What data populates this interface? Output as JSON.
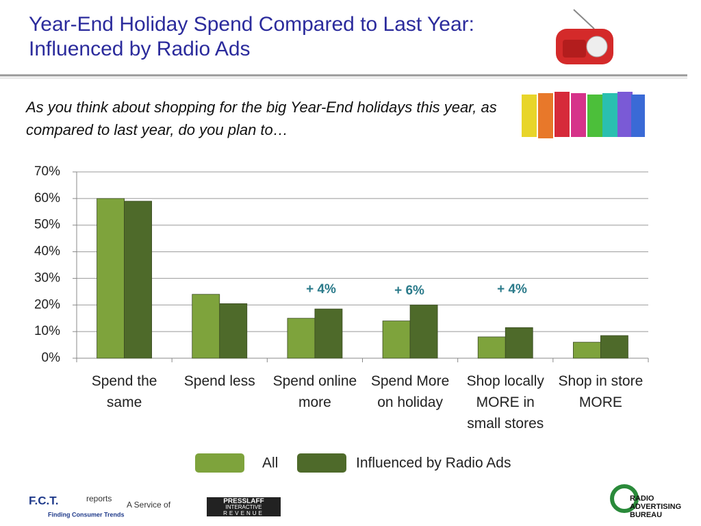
{
  "chart_data": {
    "type": "bar",
    "title": "Year-End Holiday Spend Compared to Last Year: Influenced by Radio Ads",
    "subtitle": "As you think about shopping for the big Year-End holidays this year, as compared to last year, do you plan to…",
    "categories": [
      "Spend the same",
      "Spend less",
      "Spend online more",
      "Spend More on holiday",
      "Shop locally MORE in small stores",
      "Shop in store MORE"
    ],
    "series": [
      {
        "name": "All",
        "color": "#7ea33c",
        "values": [
          60,
          24,
          15,
          14,
          8,
          6
        ]
      },
      {
        "name": "Influenced by Radio Ads",
        "color": "#4e6a2a",
        "values": [
          59,
          20.5,
          18.5,
          20,
          11.5,
          8.5
        ]
      }
    ],
    "annotations": [
      "+ 4%",
      "+ 6%",
      "+ 4%"
    ],
    "ylim": [
      0,
      70
    ],
    "yticks": [
      {
        "value": 0,
        "label": "0%"
      },
      {
        "value": 10,
        "label": "10%"
      },
      {
        "value": 20,
        "label": "20%"
      },
      {
        "value": 30,
        "label": "30%"
      },
      {
        "value": 40,
        "label": "40%"
      },
      {
        "value": 50,
        "label": "50%"
      },
      {
        "value": 60,
        "label": "60%"
      },
      {
        "value": 70,
        "label": "70%"
      }
    ],
    "grid": true
  },
  "footer": {
    "fct": "F.C.T.",
    "reports": "reports",
    "fct_tagline": "Finding Consumer Trends",
    "service": "A Service of",
    "presslaff": "PRESSLAFF",
    "interactive": "INTERACTIVE",
    "revenue": "REVENUE",
    "rab": "RADIO ADVERTISING BUREAU"
  }
}
